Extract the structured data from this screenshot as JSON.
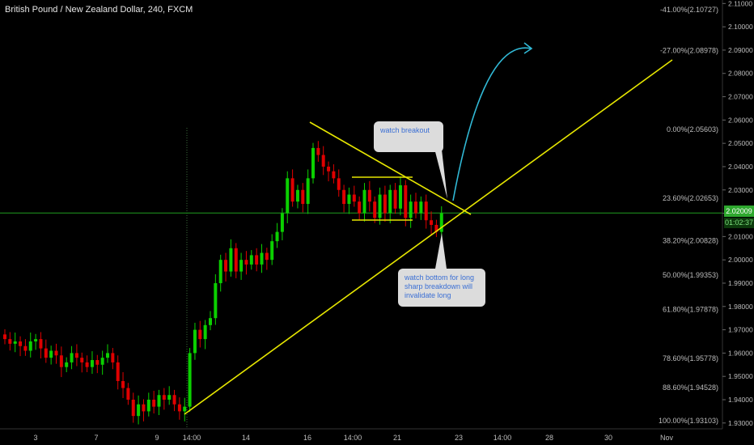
{
  "header": {
    "title": "British Pound / New Zealand Dollar, 240, FXCM"
  },
  "colors": {
    "background": "#000000",
    "up_candle": "#0bd000",
    "down_candle": "#e00000",
    "trendline": "#e6e600",
    "arrow": "#31b9d6",
    "current_price_line": "#1f9e1f",
    "axis_text": "#bdbdbd"
  },
  "chart_data": {
    "type": "candlestick",
    "symbol": "British Pound / New Zealand Dollar",
    "interval": "240",
    "source": "FXCM",
    "ylim": [
      1.9275,
      2.1115
    ],
    "y_ticks": [
      2.11,
      2.1,
      2.09,
      2.08,
      2.07,
      2.06,
      2.05,
      2.04,
      2.03,
      2.02,
      2.01,
      2.0,
      1.99,
      1.98,
      1.97,
      1.96,
      1.95,
      1.94,
      1.93
    ],
    "y_tick_labels": [
      "2.11000",
      "2.10000",
      "2.09000",
      "2.08000",
      "2.07000",
      "2.06000",
      "2.05000",
      "2.04000",
      "2.03000",
      "2.02000",
      "2.01000",
      "2.00000",
      "1.99000",
      "1.98000",
      "1.97000",
      "1.96000",
      "1.95000",
      "1.94000",
      "1.93000"
    ],
    "x_tick_labels": [
      "3",
      "7",
      "9",
      "14:00",
      "14",
      "16",
      "14:00",
      "21",
      "23",
      "14:00",
      "28",
      "30",
      "Nov"
    ],
    "current_price": 2.02009,
    "current_price_label": "2.02009",
    "countdown_label": "01:02:37",
    "fibonacci": [
      {
        "label": "-41.00%(2.10727)",
        "price": 2.10727
      },
      {
        "label": "-27.00%(2.08978)",
        "price": 2.08978
      },
      {
        "label": "0.00%(2.05603)",
        "price": 2.05603
      },
      {
        "label": "23.60%(2.02653)",
        "price": 2.02653
      },
      {
        "label": "38.20%(2.00828)",
        "price": 2.00828
      },
      {
        "label": "50.00%(1.99353)",
        "price": 1.99353
      },
      {
        "label": "61.80%(1.97878)",
        "price": 1.97878
      },
      {
        "label": "78.60%(1.95778)",
        "price": 1.95778
      },
      {
        "label": "88.60%(1.94528)",
        "price": 1.94528
      },
      {
        "label": "100.00%(1.93103)",
        "price": 1.93103
      }
    ],
    "closes": [
      1.966,
      1.964,
      1.965,
      1.963,
      1.961,
      1.965,
      1.966,
      1.962,
      1.958,
      1.961,
      1.959,
      1.954,
      1.956,
      1.96,
      1.958,
      1.956,
      1.954,
      1.957,
      1.955,
      1.958,
      1.96,
      1.956,
      1.948,
      1.945,
      1.94,
      1.933,
      1.938,
      1.935,
      1.94,
      1.937,
      1.942,
      1.94,
      1.942,
      1.938,
      1.935,
      1.937,
      1.96,
      1.97,
      1.966,
      1.972,
      1.975,
      1.99,
      2.0,
      1.995,
      2.005,
      1.995,
      2.0,
      1.998,
      2.002,
      1.998,
      2.003,
      2.0,
      2.008,
      2.012,
      2.02,
      2.035,
      2.025,
      2.03,
      2.024,
      2.035,
      2.048,
      2.045,
      2.04,
      2.038,
      2.035,
      2.03,
      2.024,
      2.028,
      2.025,
      2.02,
      2.03,
      2.025,
      2.018,
      2.028,
      2.02,
      2.03,
      2.022,
      2.032,
      2.018,
      2.025,
      2.02,
      2.025,
      2.017,
      2.015,
      2.012,
      2.02
    ]
  },
  "annotations": {
    "watch_breakout": "watch breakout",
    "watch_bottom_lines": [
      "watch bottom for long",
      "sharp breakdown will",
      "invalidate long"
    ]
  }
}
